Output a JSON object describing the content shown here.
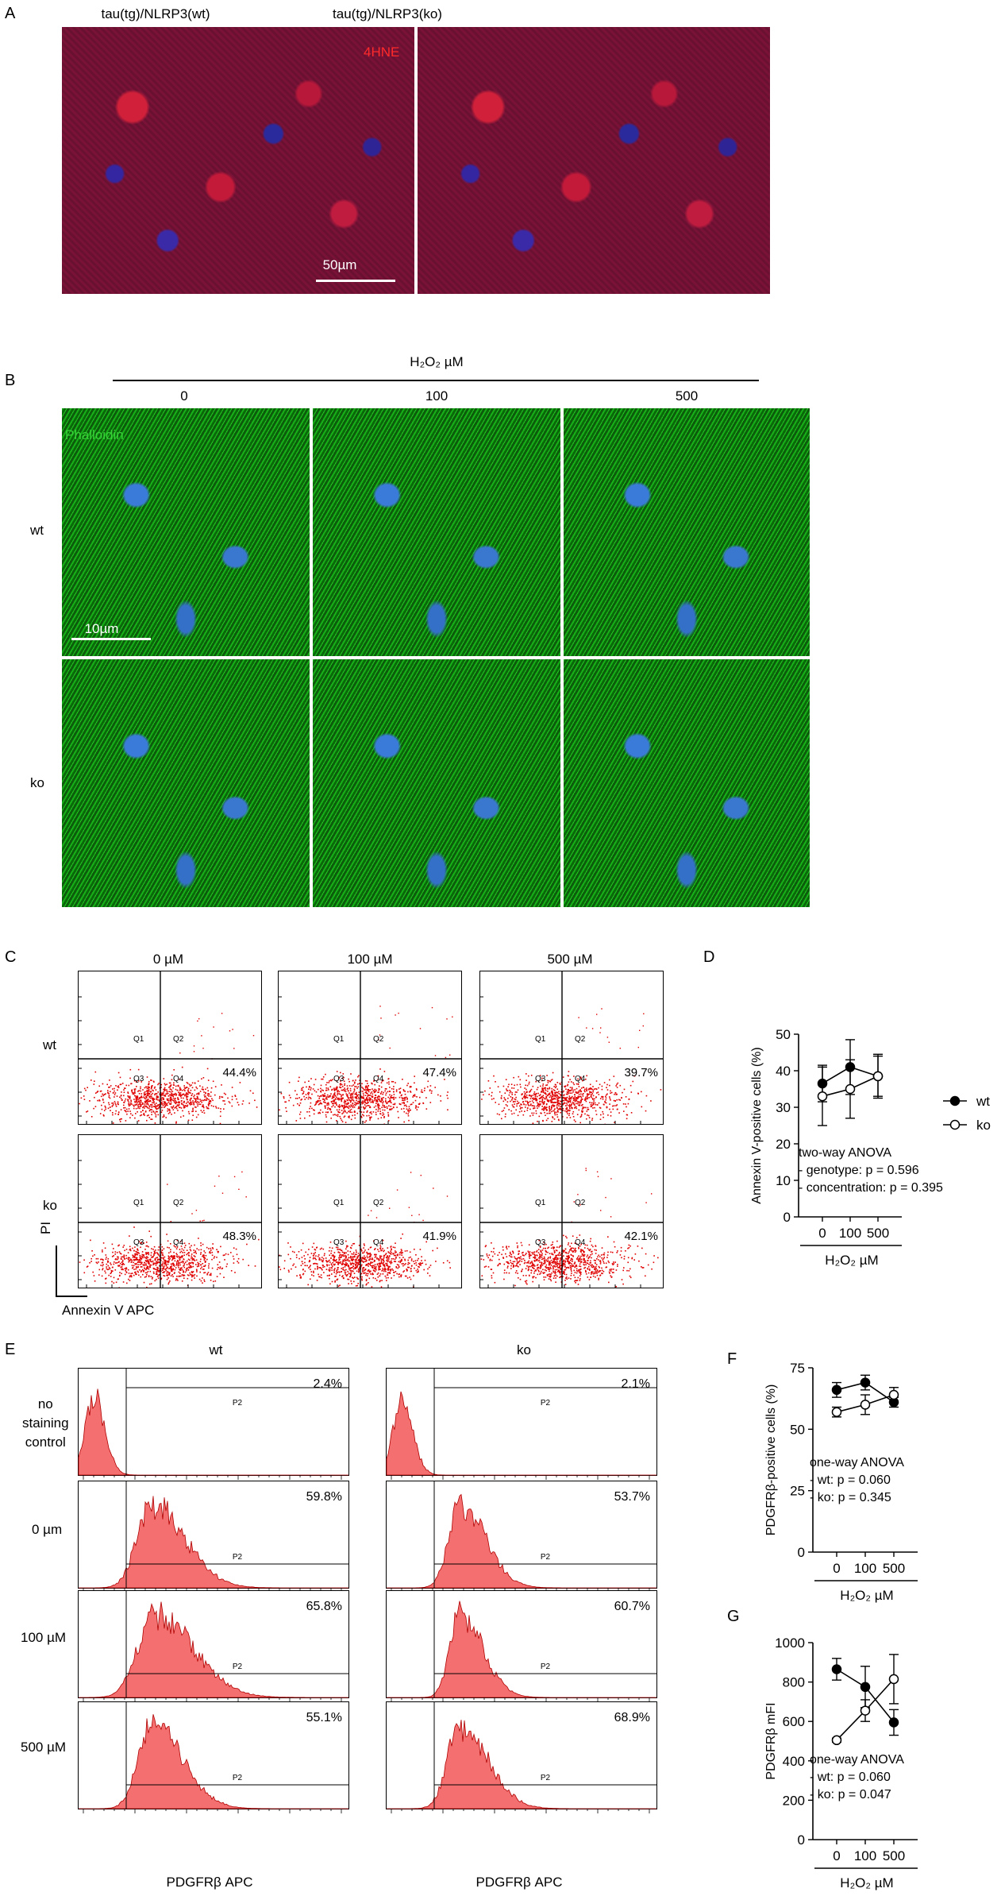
{
  "panel_letters": {
    "a": "A",
    "b": "B",
    "c": "C",
    "d": "D",
    "e": "E",
    "f": "F",
    "g": "G"
  },
  "panelA": {
    "titles": [
      "tau(tg)/NLRP3(wt)",
      "tau(tg)/NLRP3(ko)"
    ],
    "stain": "4HNE",
    "scale": "50µm",
    "stain_color": "#ff2a2a"
  },
  "panelB": {
    "header": "H₂O₂ µM",
    "concentrations": [
      "0",
      "100",
      "500"
    ],
    "rows": [
      "wt",
      "ko"
    ],
    "stain": "Phalloidin",
    "scale": "10µm",
    "stain_color": "#3ad23a"
  },
  "panelC": {
    "columns": [
      "0 µM",
      "100 µM",
      "500 µM"
    ],
    "rows": [
      "wt",
      "ko"
    ],
    "quadrants": [
      "Q1",
      "Q2",
      "Q3",
      "Q4"
    ],
    "percent": [
      [
        "44.4%",
        "47.4%",
        "39.7%"
      ],
      [
        "48.3%",
        "41.9%",
        "42.1%"
      ]
    ],
    "ylabel": "PI",
    "xlabel": "Annexin V APC",
    "dot_color": "#e00000"
  },
  "panelE": {
    "columns": [
      "wt",
      "ko"
    ],
    "rows": [
      "no\nstaining\ncontrol",
      "0 µm",
      "100 µM",
      "500 µM"
    ],
    "gate": "P2",
    "percent": [
      [
        "2.4%",
        "2.1%"
      ],
      [
        "59.8%",
        "53.7%"
      ],
      [
        "65.8%",
        "60.7%"
      ],
      [
        "55.1%",
        "68.9%"
      ]
    ],
    "xlabel": "PDGFRβ APC",
    "fill_color": "#f47070",
    "line_color": "#b00000"
  },
  "chart_data": [
    {
      "type": "line",
      "panel": "D",
      "x": [
        "0",
        "100",
        "500"
      ],
      "xlabel": "H₂O₂ µM",
      "ylabel": "Annexin V-positive cells (%)",
      "ylim": [
        0,
        50
      ],
      "yticks": [
        0,
        10,
        20,
        30,
        40,
        50
      ],
      "series": [
        {
          "name": "wt",
          "values": [
            36.5,
            41,
            38.5
          ],
          "err": [
            5,
            7.5,
            6
          ],
          "filled": true
        },
        {
          "name": "ko",
          "values": [
            33,
            35,
            38.5
          ],
          "err": [
            8,
            8,
            5.5
          ],
          "filled": false
        }
      ],
      "annotation": [
        "two-way ANOVA",
        "- genotype: p = 0.596",
        "- concentration: p = 0.395"
      ]
    },
    {
      "type": "line",
      "panel": "F",
      "x": [
        "0",
        "100",
        "500"
      ],
      "xlabel": "H₂O₂ µM",
      "ylabel": "PDGFRβ-positive cells (%)",
      "ylim": [
        0,
        75
      ],
      "yticks": [
        0,
        25,
        50,
        75
      ],
      "series": [
        {
          "name": "wt",
          "values": [
            66,
            69,
            61
          ],
          "err": [
            3,
            3,
            2
          ],
          "filled": true
        },
        {
          "name": "ko",
          "values": [
            57,
            60,
            64
          ],
          "err": [
            2,
            4,
            3
          ],
          "filled": false
        }
      ],
      "annotation": [
        "one-way ANOVA",
        "- wt: p = 0.060",
        "- ko: p = 0.345"
      ]
    },
    {
      "type": "line",
      "panel": "G",
      "x": [
        "0",
        "100",
        "500"
      ],
      "xlabel": "H₂O₂ µM",
      "ylabel": "PDGFRβ mFI",
      "ylim": [
        0,
        1000
      ],
      "yticks": [
        0,
        200,
        400,
        600,
        800,
        1000
      ],
      "series": [
        {
          "name": "wt",
          "values": [
            865,
            775,
            595
          ],
          "err": [
            55,
            105,
            65
          ],
          "filled": true
        },
        {
          "name": "ko",
          "values": [
            505,
            655,
            815
          ],
          "err": [
            10,
            55,
            125
          ],
          "filled": false
        }
      ],
      "annotation": [
        "one-way ANOVA",
        "- wt: p = 0.060",
        "- ko: p = 0.047"
      ]
    }
  ],
  "legend": {
    "wt": "wt",
    "ko": "ko"
  }
}
